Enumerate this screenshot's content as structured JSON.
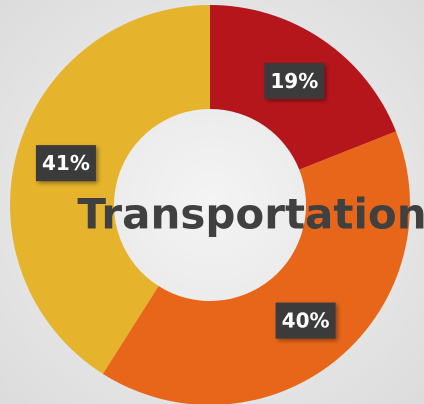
{
  "chart_data": {
    "type": "donut",
    "title": "Transportation",
    "values": [
      19,
      40,
      41
    ],
    "value_labels": [
      "19%",
      "40%",
      "41%"
    ],
    "colors": [
      "#b5161b",
      "#e8661a",
      "#e6b32c"
    ]
  }
}
